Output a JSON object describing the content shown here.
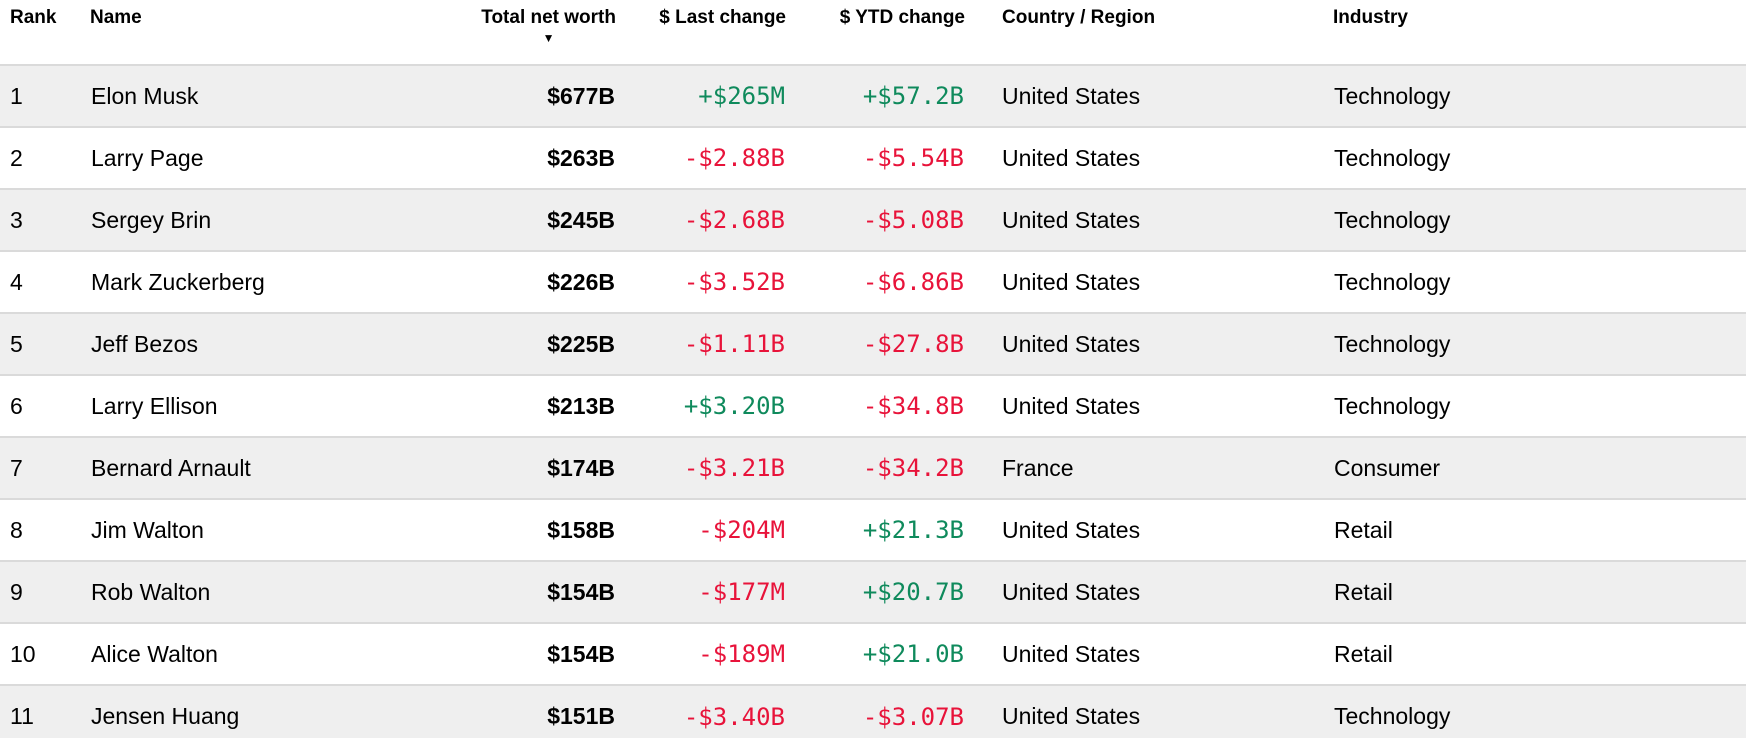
{
  "colors": {
    "positive_change": "#0f8a5c",
    "negative_change": "#e8133a",
    "row_alt_background": "#efefef",
    "row_divider": "#dadada"
  },
  "table": {
    "columns": [
      {
        "id": "rank",
        "label": "Rank"
      },
      {
        "id": "name",
        "label": "Name"
      },
      {
        "id": "worth",
        "label": "Total net worth"
      },
      {
        "id": "last",
        "label": "$ Last change"
      },
      {
        "id": "ytd",
        "label": "$ YTD change"
      },
      {
        "id": "country",
        "label": "Country / Region"
      },
      {
        "id": "industry",
        "label": "Industry"
      }
    ],
    "sort": {
      "column": "Total net worth",
      "direction": "descending",
      "icon": "▼"
    },
    "rows": [
      {
        "rank": "1",
        "name": "Elon Musk",
        "total_net_worth": "$677B",
        "last_change": "+$265M",
        "ytd_change": "+$57.2B",
        "country": "United States",
        "industry": "Technology"
      },
      {
        "rank": "2",
        "name": "Larry Page",
        "total_net_worth": "$263B",
        "last_change": "-$2.88B",
        "ytd_change": "-$5.54B",
        "country": "United States",
        "industry": "Technology"
      },
      {
        "rank": "3",
        "name": "Sergey Brin",
        "total_net_worth": "$245B",
        "last_change": "-$2.68B",
        "ytd_change": "-$5.08B",
        "country": "United States",
        "industry": "Technology"
      },
      {
        "rank": "4",
        "name": "Mark Zuckerberg",
        "total_net_worth": "$226B",
        "last_change": "-$3.52B",
        "ytd_change": "-$6.86B",
        "country": "United States",
        "industry": "Technology"
      },
      {
        "rank": "5",
        "name": "Jeff Bezos",
        "total_net_worth": "$225B",
        "last_change": "-$1.11B",
        "ytd_change": "-$27.8B",
        "country": "United States",
        "industry": "Technology"
      },
      {
        "rank": "6",
        "name": "Larry Ellison",
        "total_net_worth": "$213B",
        "last_change": "+$3.20B",
        "ytd_change": "-$34.8B",
        "country": "United States",
        "industry": "Technology"
      },
      {
        "rank": "7",
        "name": "Bernard Arnault",
        "total_net_worth": "$174B",
        "last_change": "-$3.21B",
        "ytd_change": "-$34.2B",
        "country": "France",
        "industry": "Consumer"
      },
      {
        "rank": "8",
        "name": "Jim Walton",
        "total_net_worth": "$158B",
        "last_change": "-$204M",
        "ytd_change": "+$21.3B",
        "country": "United States",
        "industry": "Retail"
      },
      {
        "rank": "9",
        "name": "Rob Walton",
        "total_net_worth": "$154B",
        "last_change": "-$177M",
        "ytd_change": "+$20.7B",
        "country": "United States",
        "industry": "Retail"
      },
      {
        "rank": "10",
        "name": "Alice Walton",
        "total_net_worth": "$154B",
        "last_change": "-$189M",
        "ytd_change": "+$21.0B",
        "country": "United States",
        "industry": "Retail"
      },
      {
        "rank": "11",
        "name": "Jensen Huang",
        "total_net_worth": "$151B",
        "last_change": "-$3.40B",
        "ytd_change": "-$3.07B",
        "country": "United States",
        "industry": "Technology"
      }
    ]
  }
}
